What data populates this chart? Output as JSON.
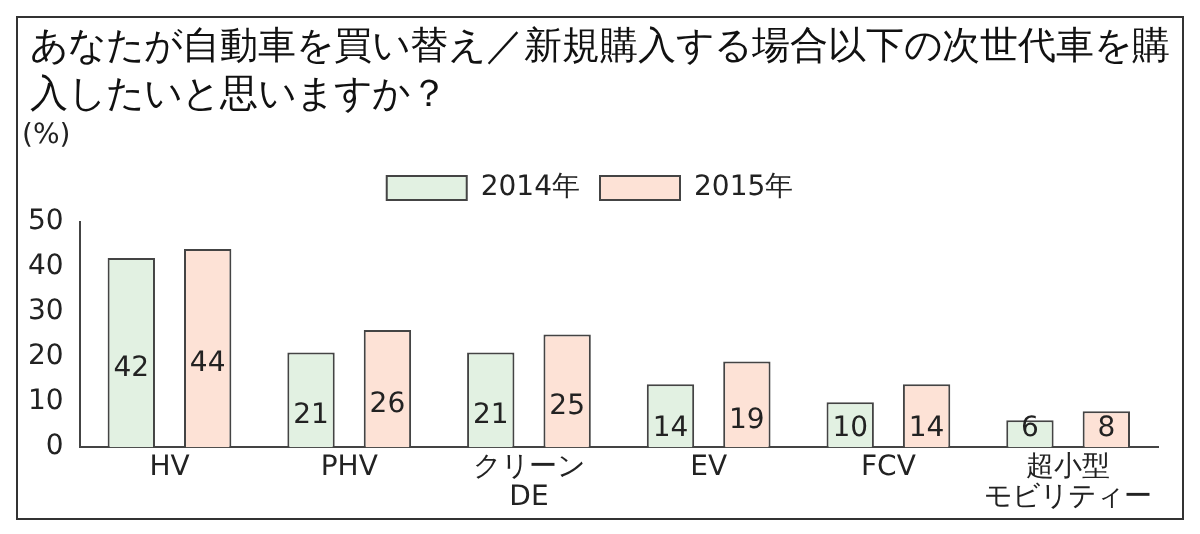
{
  "chart_data": {
    "type": "bar",
    "title": "あなたが自動車を買い替え／新規購入する場合以下の次世代車を購入したいと思いますか？",
    "ylabel": "(%)",
    "categories": [
      "HV",
      "PHV",
      "クリーンDE",
      "EV",
      "FCV",
      "超小型モビリティー"
    ],
    "series": [
      {
        "name": "2014年",
        "color": "#e2f1e2",
        "values": [
          42,
          21,
          21,
          14,
          10,
          6
        ]
      },
      {
        "name": "2015年",
        "color": "#fde2d6",
        "values": [
          44,
          26,
          25,
          19,
          14,
          8
        ]
      }
    ],
    "ylim": [
      0,
      50
    ],
    "yticks": [
      0,
      10,
      20,
      30,
      40,
      50
    ],
    "grid": false,
    "legend": "top",
    "data_labels": true
  }
}
